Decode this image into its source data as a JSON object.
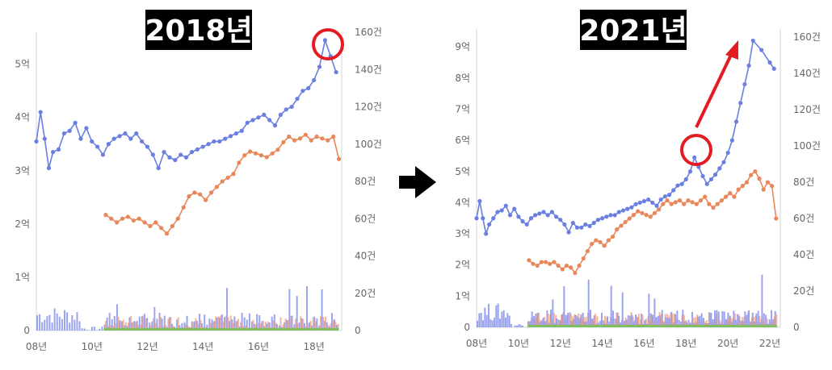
{
  "arrow_icon": "right-arrow-icon",
  "colors": {
    "price": "#6a7fe0",
    "count": "#e8875a",
    "vol_blue": "#8a94ec",
    "vol_orange": "#f4a385",
    "vol_green": "#7fbf5a",
    "highlight": "#e31b23",
    "axis": "#d6d6d6"
  },
  "chart_data": [
    {
      "type": "line",
      "title": "2018년",
      "x_ticks": [
        "08년",
        "10년",
        "12년",
        "14년",
        "16년",
        "18년"
      ],
      "y_left_ticks": [
        "0",
        "1억",
        "2억",
        "3억",
        "4억",
        "5억"
      ],
      "y_right_ticks": [
        "0",
        "20건",
        "40건",
        "60건",
        "80건",
        "100건",
        "120건",
        "140건",
        "160건"
      ],
      "xlim": [
        2008,
        2019
      ],
      "ylim_left": [
        0,
        5.6
      ],
      "ylim_right": [
        0,
        160
      ],
      "series": [
        {
          "axis": "left",
          "values": [
            [
              2008.0,
              3.55
            ],
            [
              2008.15,
              4.1
            ],
            [
              2008.3,
              3.6
            ],
            [
              2008.45,
              3.05
            ],
            [
              2008.6,
              3.35
            ],
            [
              2008.8,
              3.4
            ],
            [
              2009.0,
              3.7
            ],
            [
              2009.2,
              3.75
            ],
            [
              2009.4,
              3.9
            ],
            [
              2009.6,
              3.6
            ],
            [
              2009.8,
              3.8
            ],
            [
              2010.0,
              3.55
            ],
            [
              2010.2,
              3.45
            ],
            [
              2010.4,
              3.3
            ],
            [
              2010.6,
              3.5
            ],
            [
              2010.8,
              3.6
            ],
            [
              2011.0,
              3.65
            ],
            [
              2011.2,
              3.7
            ],
            [
              2011.4,
              3.6
            ],
            [
              2011.6,
              3.7
            ],
            [
              2011.8,
              3.55
            ],
            [
              2012.0,
              3.45
            ],
            [
              2012.2,
              3.3
            ],
            [
              2012.4,
              3.05
            ],
            [
              2012.6,
              3.35
            ],
            [
              2012.8,
              3.25
            ],
            [
              2013.0,
              3.2
            ],
            [
              2013.2,
              3.3
            ],
            [
              2013.4,
              3.25
            ],
            [
              2013.6,
              3.35
            ],
            [
              2013.8,
              3.4
            ],
            [
              2014.0,
              3.45
            ],
            [
              2014.2,
              3.5
            ],
            [
              2014.4,
              3.55
            ],
            [
              2014.6,
              3.55
            ],
            [
              2014.8,
              3.6
            ],
            [
              2015.0,
              3.65
            ],
            [
              2015.2,
              3.7
            ],
            [
              2015.4,
              3.75
            ],
            [
              2015.6,
              3.9
            ],
            [
              2015.8,
              3.95
            ],
            [
              2016.0,
              4.0
            ],
            [
              2016.2,
              4.05
            ],
            [
              2016.4,
              3.95
            ],
            [
              2016.6,
              3.85
            ],
            [
              2016.8,
              4.05
            ],
            [
              2017.0,
              4.15
            ],
            [
              2017.2,
              4.2
            ],
            [
              2017.4,
              4.35
            ],
            [
              2017.6,
              4.5
            ],
            [
              2017.8,
              4.55
            ],
            [
              2018.0,
              4.7
            ],
            [
              2018.2,
              4.95
            ],
            [
              2018.4,
              5.45
            ],
            [
              2018.6,
              5.15
            ],
            [
              2018.8,
              4.85
            ]
          ]
        },
        {
          "axis": "right",
          "values": [
            [
              2010.5,
              62
            ],
            [
              2010.7,
              60
            ],
            [
              2010.9,
              58
            ],
            [
              2011.1,
              60
            ],
            [
              2011.3,
              61
            ],
            [
              2011.5,
              59
            ],
            [
              2011.7,
              60
            ],
            [
              2011.9,
              58
            ],
            [
              2012.1,
              56
            ],
            [
              2012.3,
              58
            ],
            [
              2012.5,
              55
            ],
            [
              2012.7,
              52
            ],
            [
              2012.9,
              56
            ],
            [
              2013.1,
              60
            ],
            [
              2013.3,
              66
            ],
            [
              2013.5,
              72
            ],
            [
              2013.7,
              74
            ],
            [
              2013.9,
              73
            ],
            [
              2014.1,
              70
            ],
            [
              2014.3,
              74
            ],
            [
              2014.5,
              77
            ],
            [
              2014.7,
              80
            ],
            [
              2014.9,
              82
            ],
            [
              2015.1,
              84
            ],
            [
              2015.3,
              90
            ],
            [
              2015.5,
              94
            ],
            [
              2015.7,
              96
            ],
            [
              2015.9,
              95
            ],
            [
              2016.1,
              94
            ],
            [
              2016.3,
              93
            ],
            [
              2016.5,
              95
            ],
            [
              2016.7,
              97
            ],
            [
              2016.9,
              101
            ],
            [
              2017.1,
              104
            ],
            [
              2017.3,
              102
            ],
            [
              2017.5,
              103
            ],
            [
              2017.7,
              105
            ],
            [
              2017.9,
              102
            ],
            [
              2018.1,
              104
            ],
            [
              2018.3,
              103
            ],
            [
              2018.5,
              102
            ],
            [
              2018.7,
              104
            ],
            [
              2018.9,
              92
            ]
          ]
        }
      ]
    },
    {
      "type": "line",
      "title": "2021년",
      "x_ticks": [
        "08년",
        "10년",
        "12년",
        "14년",
        "16년",
        "18년",
        "20년",
        "22년"
      ],
      "y_left_ticks": [
        "0",
        "1억",
        "2억",
        "3억",
        "4억",
        "5억",
        "6억",
        "7억",
        "8억",
        "9억"
      ],
      "y_right_ticks": [
        "0",
        "20건",
        "40건",
        "60건",
        "80건",
        "100건",
        "120건",
        "140건",
        "160건"
      ],
      "xlim": [
        2008,
        2022.5
      ],
      "ylim_left": [
        0,
        9.6
      ],
      "ylim_right": [
        0,
        165
      ],
      "series": [
        {
          "axis": "left",
          "values": [
            [
              2008.0,
              3.5
            ],
            [
              2008.15,
              4.05
            ],
            [
              2008.3,
              3.5
            ],
            [
              2008.45,
              3.0
            ],
            [
              2008.6,
              3.3
            ],
            [
              2008.8,
              3.5
            ],
            [
              2009.0,
              3.7
            ],
            [
              2009.2,
              3.75
            ],
            [
              2009.4,
              3.9
            ],
            [
              2009.6,
              3.6
            ],
            [
              2009.8,
              3.8
            ],
            [
              2010.0,
              3.55
            ],
            [
              2010.2,
              3.4
            ],
            [
              2010.4,
              3.3
            ],
            [
              2010.6,
              3.5
            ],
            [
              2010.8,
              3.6
            ],
            [
              2011.0,
              3.65
            ],
            [
              2011.2,
              3.7
            ],
            [
              2011.4,
              3.6
            ],
            [
              2011.6,
              3.7
            ],
            [
              2011.8,
              3.55
            ],
            [
              2012.0,
              3.45
            ],
            [
              2012.2,
              3.3
            ],
            [
              2012.4,
              3.05
            ],
            [
              2012.6,
              3.35
            ],
            [
              2012.8,
              3.2
            ],
            [
              2013.0,
              3.2
            ],
            [
              2013.2,
              3.3
            ],
            [
              2013.4,
              3.25
            ],
            [
              2013.6,
              3.35
            ],
            [
              2013.8,
              3.45
            ],
            [
              2014.0,
              3.5
            ],
            [
              2014.2,
              3.55
            ],
            [
              2014.4,
              3.6
            ],
            [
              2014.6,
              3.6
            ],
            [
              2014.8,
              3.7
            ],
            [
              2015.0,
              3.75
            ],
            [
              2015.2,
              3.8
            ],
            [
              2015.4,
              3.85
            ],
            [
              2015.6,
              3.95
            ],
            [
              2015.8,
              4.0
            ],
            [
              2016.0,
              4.05
            ],
            [
              2016.2,
              4.1
            ],
            [
              2016.4,
              4.0
            ],
            [
              2016.6,
              3.9
            ],
            [
              2016.8,
              4.1
            ],
            [
              2017.0,
              4.2
            ],
            [
              2017.2,
              4.25
            ],
            [
              2017.4,
              4.4
            ],
            [
              2017.6,
              4.55
            ],
            [
              2017.8,
              4.6
            ],
            [
              2018.0,
              4.75
            ],
            [
              2018.2,
              5.0
            ],
            [
              2018.4,
              5.45
            ],
            [
              2018.6,
              5.15
            ],
            [
              2018.8,
              4.85
            ],
            [
              2019.0,
              4.6
            ],
            [
              2019.2,
              4.75
            ],
            [
              2019.4,
              4.9
            ],
            [
              2019.6,
              5.1
            ],
            [
              2019.8,
              5.3
            ],
            [
              2020.0,
              5.6
            ],
            [
              2020.2,
              6.0
            ],
            [
              2020.4,
              6.6
            ],
            [
              2020.6,
              7.2
            ],
            [
              2020.8,
              7.8
            ],
            [
              2021.0,
              8.4
            ],
            [
              2021.2,
              9.2
            ],
            [
              2021.6,
              8.9
            ],
            [
              2022.0,
              8.5
            ],
            [
              2022.2,
              8.3
            ]
          ]
        },
        {
          "axis": "right",
          "values": [
            [
              2010.5,
              37
            ],
            [
              2010.7,
              35
            ],
            [
              2010.9,
              34
            ],
            [
              2011.1,
              36
            ],
            [
              2011.3,
              36
            ],
            [
              2011.5,
              35
            ],
            [
              2011.7,
              36
            ],
            [
              2011.9,
              34
            ],
            [
              2012.1,
              32
            ],
            [
              2012.3,
              34
            ],
            [
              2012.5,
              33
            ],
            [
              2012.7,
              30
            ],
            [
              2012.9,
              34
            ],
            [
              2013.1,
              38
            ],
            [
              2013.3,
              42
            ],
            [
              2013.5,
              46
            ],
            [
              2013.7,
              48
            ],
            [
              2013.9,
              47
            ],
            [
              2014.1,
              45
            ],
            [
              2014.3,
              48
            ],
            [
              2014.5,
              50
            ],
            [
              2014.7,
              54
            ],
            [
              2014.9,
              56
            ],
            [
              2015.1,
              58
            ],
            [
              2015.3,
              60
            ],
            [
              2015.5,
              62
            ],
            [
              2015.7,
              64
            ],
            [
              2015.9,
              63
            ],
            [
              2016.1,
              62
            ],
            [
              2016.3,
              61
            ],
            [
              2016.5,
              63
            ],
            [
              2016.7,
              65
            ],
            [
              2016.9,
              68
            ],
            [
              2017.1,
              70
            ],
            [
              2017.3,
              68
            ],
            [
              2017.5,
              69
            ],
            [
              2017.7,
              70
            ],
            [
              2017.9,
              68
            ],
            [
              2018.1,
              70
            ],
            [
              2018.3,
              69
            ],
            [
              2018.5,
              68
            ],
            [
              2018.7,
              70
            ],
            [
              2018.9,
              72
            ],
            [
              2019.1,
              68
            ],
            [
              2019.3,
              66
            ],
            [
              2019.5,
              68
            ],
            [
              2019.7,
              70
            ],
            [
              2019.9,
              72
            ],
            [
              2020.1,
              74
            ],
            [
              2020.3,
              72
            ],
            [
              2020.5,
              76
            ],
            [
              2020.7,
              78
            ],
            [
              2020.9,
              80
            ],
            [
              2021.1,
              84
            ],
            [
              2021.3,
              86
            ],
            [
              2021.5,
              82
            ],
            [
              2021.7,
              76
            ],
            [
              2021.9,
              80
            ],
            [
              2022.1,
              78
            ],
            [
              2022.3,
              60
            ]
          ]
        }
      ]
    }
  ]
}
